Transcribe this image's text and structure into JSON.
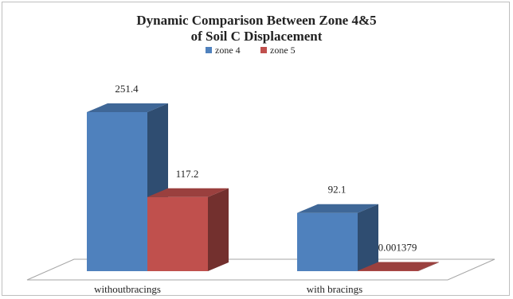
{
  "chart_data": {
    "type": "bar",
    "title_lines": [
      "Dynamic Comparison Between Zone 4&5",
      "of Soil C Displacement"
    ],
    "categories": [
      "withoutbracings",
      "with bracings"
    ],
    "series": [
      {
        "name": "zone 4",
        "values": [
          251.4,
          92.1
        ],
        "labels": [
          "251.4",
          "92.1"
        ],
        "color": "#4f81bd"
      },
      {
        "name": "zone 5",
        "values": [
          117.2,
          0.001379
        ],
        "labels": [
          "117.2",
          "0.001379"
        ],
        "color": "#c0504d"
      }
    ],
    "ylim": [
      0,
      300
    ],
    "grid": false,
    "legend_position": "top-center",
    "style": "3d-column"
  }
}
